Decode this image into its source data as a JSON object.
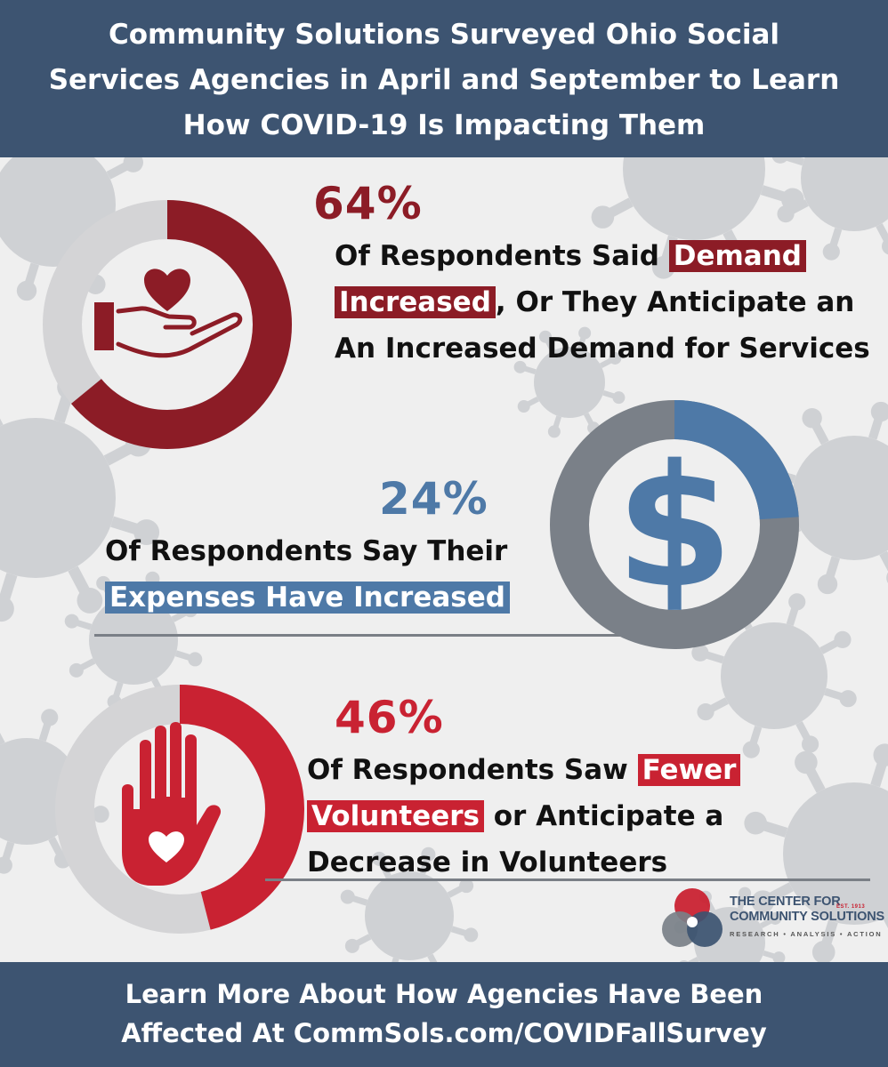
{
  "header": {
    "lines": [
      "Community Solutions Surveyed Ohio Social",
      "Services Agencies in April and September to Learn",
      "How COVID-19 Is Impacting Them"
    ]
  },
  "chart_data": {
    "type": "donut",
    "stats": [
      {
        "value": 64,
        "value_label": "64%",
        "icon": "heart-in-hand-icon",
        "color": "#8c1c26",
        "remainder_color": "#d4d4d6",
        "text_before": "Of Respondents Said ",
        "highlight_a": "Demand",
        "highlight_b": "Increased",
        "text_after_1": ", Or They Anticipate an",
        "text_after_2": "An Increased Demand for Services"
      },
      {
        "value": 24,
        "value_label": "24%",
        "icon": "dollar-sign-icon",
        "color": "#4e79a7",
        "remainder_color": "#7a8088",
        "text_line_1": "Of Respondents Say Their",
        "highlight": "Expenses Have Increased"
      },
      {
        "value": 46,
        "value_label": "46%",
        "icon": "raised-hand-heart-icon",
        "color": "#c92232",
        "remainder_color": "#d4d4d6",
        "text_before": "Of Respondents Saw ",
        "highlight_a": "Fewer",
        "highlight_b": "Volunteers",
        "text_after_1": " or Anticipate a",
        "text_after_2": "Decrease in Volunteers"
      }
    ]
  },
  "logo": {
    "line1": "THE CENTER FOR",
    "line2": "COMMUNITY SOLUTIONS",
    "est": "EST. 1913",
    "tagline": "RESEARCH • ANALYSIS • ACTION",
    "colors": [
      "#c92232",
      "#3d5471",
      "#7a8088"
    ]
  },
  "footer": {
    "lines": [
      "Learn More About How Agencies Have Been",
      "Affected At CommSols.com/COVIDFallSurvey"
    ]
  }
}
